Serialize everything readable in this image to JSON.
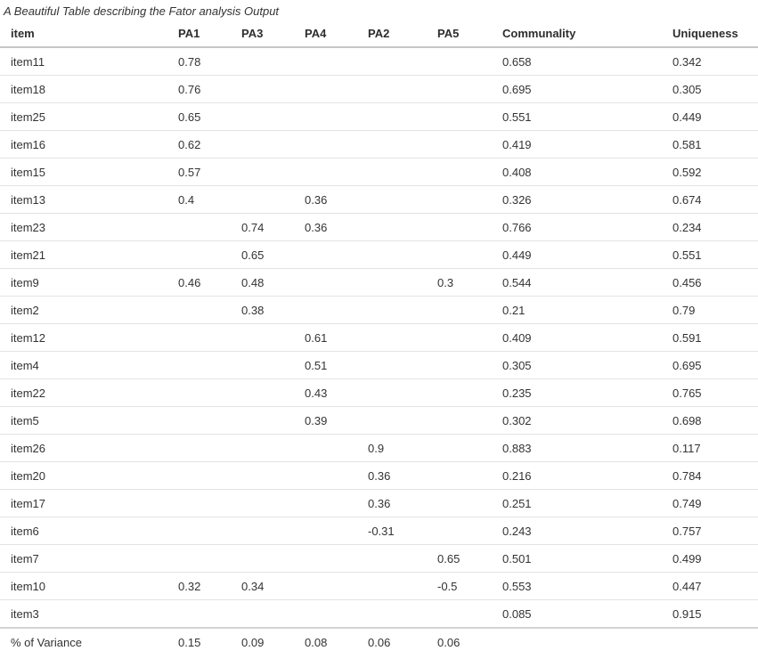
{
  "chart_data": {
    "type": "table",
    "title": "A Beautiful Table describing the Fator analysis Output",
    "columns": [
      "item",
      "PA1",
      "PA3",
      "PA4",
      "PA2",
      "PA5",
      "Communality",
      "Uniqueness"
    ],
    "rows": [
      [
        "item11",
        "0.78",
        "",
        "",
        "",
        "",
        "0.658",
        "0.342"
      ],
      [
        "item18",
        "0.76",
        "",
        "",
        "",
        "",
        "0.695",
        "0.305"
      ],
      [
        "item25",
        "0.65",
        "",
        "",
        "",
        "",
        "0.551",
        "0.449"
      ],
      [
        "item16",
        "0.62",
        "",
        "",
        "",
        "",
        "0.419",
        "0.581"
      ],
      [
        "item15",
        "0.57",
        "",
        "",
        "",
        "",
        "0.408",
        "0.592"
      ],
      [
        "item13",
        "0.4",
        "",
        "0.36",
        "",
        "",
        "0.326",
        "0.674"
      ],
      [
        "item23",
        "",
        "0.74",
        "0.36",
        "",
        "",
        "0.766",
        "0.234"
      ],
      [
        "item21",
        "",
        "0.65",
        "",
        "",
        "",
        "0.449",
        "0.551"
      ],
      [
        "item9",
        "0.46",
        "0.48",
        "",
        "",
        "0.3",
        "0.544",
        "0.456"
      ],
      [
        "item2",
        "",
        "0.38",
        "",
        "",
        "",
        "0.21",
        "0.79"
      ],
      [
        "item12",
        "",
        "",
        "0.61",
        "",
        "",
        "0.409",
        "0.591"
      ],
      [
        "item4",
        "",
        "",
        "0.51",
        "",
        "",
        "0.305",
        "0.695"
      ],
      [
        "item22",
        "",
        "",
        "0.43",
        "",
        "",
        "0.235",
        "0.765"
      ],
      [
        "item5",
        "",
        "",
        "0.39",
        "",
        "",
        "0.302",
        "0.698"
      ],
      [
        "item26",
        "",
        "",
        "",
        "0.9",
        "",
        "0.883",
        "0.117"
      ],
      [
        "item20",
        "",
        "",
        "",
        "0.36",
        "",
        "0.216",
        "0.784"
      ],
      [
        "item17",
        "",
        "",
        "",
        "0.36",
        "",
        "0.251",
        "0.749"
      ],
      [
        "item6",
        "",
        "",
        "",
        "-0.31",
        "",
        "0.243",
        "0.757"
      ],
      [
        "item7",
        "",
        "",
        "",
        "",
        "0.65",
        "0.501",
        "0.499"
      ],
      [
        "item10",
        "0.32",
        "0.34",
        "",
        "",
        "-0.5",
        "0.553",
        "0.447"
      ],
      [
        "item3",
        "",
        "",
        "",
        "",
        "",
        "0.085",
        "0.915"
      ]
    ],
    "footer_row": [
      "% of Variance",
      "0.15",
      "0.09",
      "0.08",
      "0.06",
      "0.06",
      "",
      ""
    ],
    "layout": {
      "grid": "horizontal-row-separators-only",
      "legend": "none",
      "value_alignment": "left"
    }
  },
  "style": {
    "text_color": "#333333",
    "header_border_color": "#c6c6c6",
    "row_border_color": "#e3e3e3",
    "background_color": "#ffffff"
  }
}
